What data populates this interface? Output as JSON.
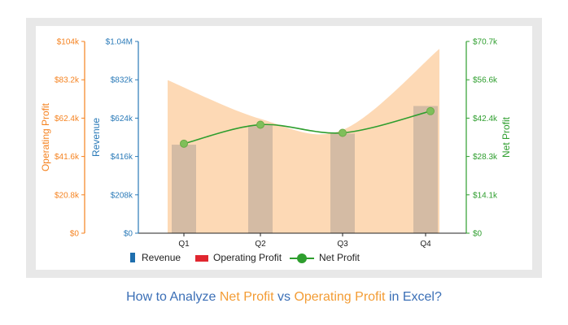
{
  "caption": {
    "part1": "How to Analyze ",
    "part2": "Net Profit",
    "part3": " vs ",
    "part4": "Operating Profit",
    "part5": " in Excel?"
  },
  "chart_data": {
    "type": "bar",
    "categories": [
      "Q1",
      "Q2",
      "Q3",
      "Q4"
    ],
    "series": [
      {
        "name": "Revenue",
        "type": "bar",
        "color": "#d2b9a3",
        "axis": "revenue",
        "values": [
          480000,
          585000,
          540000,
          690000
        ]
      },
      {
        "name": "Operating Profit",
        "type": "area",
        "color": "#fdd9b5",
        "axis": "operating",
        "values": [
          83000,
          62000,
          56000,
          100000
        ]
      },
      {
        "name": "Net Profit",
        "type": "line",
        "color": "#2e9e2e",
        "axis": "net",
        "values": [
          33000,
          40000,
          37000,
          45000
        ]
      }
    ],
    "axes": {
      "operating": {
        "label": "Operating Profit",
        "color": "#f5821f",
        "ylim": [
          0,
          104000
        ],
        "ticks": [
          "$0",
          "$20.8k",
          "$41.6k",
          "$62.4k",
          "$83.2k",
          "$104k"
        ]
      },
      "revenue": {
        "label": "Revenue",
        "color": "#2a7ab8",
        "ylim": [
          0,
          1040000
        ],
        "ticks": [
          "$0",
          "$208k",
          "$416k",
          "$624k",
          "$832k",
          "$1.04M"
        ]
      },
      "net": {
        "label": "Net Profit",
        "color": "#2e9e2e",
        "ylim": [
          0,
          70700
        ],
        "ticks": [
          "$0",
          "$14.1k",
          "$28.3k",
          "$42.4k",
          "$56.6k",
          "$70.7k"
        ]
      }
    },
    "legend": {
      "position": "bottom",
      "items": [
        {
          "label": "Revenue",
          "color": "#1f6fae",
          "shape": "bar"
        },
        {
          "label": "Operating Profit",
          "color": "#e0262f",
          "shape": "bar"
        },
        {
          "label": "Net Profit",
          "color": "#2e9e2e",
          "shape": "line-marker"
        }
      ]
    },
    "grid": false
  }
}
